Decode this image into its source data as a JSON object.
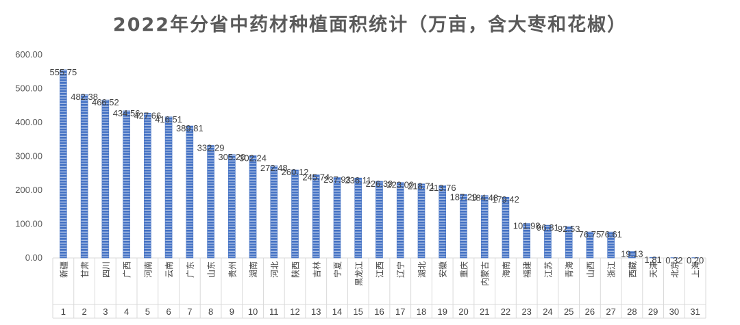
{
  "chart_data": {
    "type": "bar",
    "title": "2022年分省中药材种植面积统计（万亩，含大枣和花椒）",
    "categories": [
      "新疆",
      "甘肃",
      "四川",
      "广西",
      "河南",
      "云南",
      "广东",
      "山东",
      "贵州",
      "湖南",
      "河北",
      "陕西",
      "吉林",
      "宁夏",
      "黑龙江",
      "江西",
      "辽宁",
      "湖北",
      "安徽",
      "重庆",
      "内蒙古",
      "海南",
      "福建",
      "江苏",
      "青海",
      "山西",
      "浙江",
      "西藏",
      "天津",
      "北京",
      "上海"
    ],
    "ranks": [
      "1",
      "2",
      "3",
      "4",
      "5",
      "6",
      "7",
      "8",
      "9",
      "10",
      "11",
      "12",
      "13",
      "14",
      "15",
      "16",
      "17",
      "18",
      "19",
      "20",
      "21",
      "22",
      "23",
      "24",
      "25",
      "26",
      "27",
      "28",
      "29",
      "30",
      "31"
    ],
    "values": [
      555.75,
      482.38,
      466.52,
      434.56,
      427.66,
      416.51,
      389.81,
      332.29,
      305.2,
      302.24,
      272.48,
      260.12,
      245.74,
      237.93,
      236.11,
      226.39,
      223.0,
      218.71,
      213.76,
      187.29,
      184.48,
      179.42,
      101.98,
      96.81,
      92.53,
      76.75,
      76.61,
      19.13,
      1.81,
      0.32,
      0.2
    ],
    "value_labels": [
      "555.75",
      "482.38",
      "466.52",
      "434.56",
      "427.66",
      "416.51",
      "389.81",
      "332.29",
      "305.20",
      "302.24",
      "272.48",
      "260.12",
      "245.74",
      "237.93",
      "236.11",
      "226.39",
      "223.00",
      "218.71",
      "213.76",
      "187.29",
      "184.48",
      "179.42",
      "101.98",
      "96.81",
      "92.53",
      "76.75",
      "76.61",
      "19.13",
      "1.81",
      "0.32",
      "0.20"
    ],
    "yticks": [
      "0.00",
      "100.00",
      "200.00",
      "300.00",
      "400.00",
      "500.00",
      "600.00"
    ],
    "ylim": [
      0,
      600
    ],
    "grid": false,
    "bar_color": "#4472c4"
  }
}
